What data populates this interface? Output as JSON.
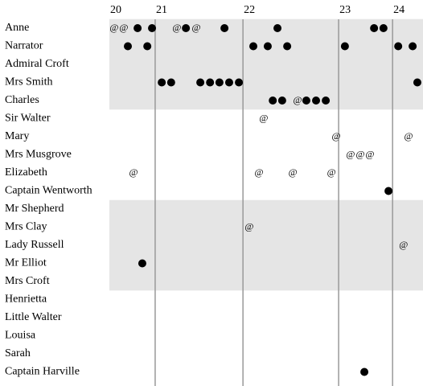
{
  "chart_data": {
    "type": "timeline",
    "marker_text": "@",
    "xlim": [
      0,
      100
    ],
    "xticks": [
      {
        "value": 0,
        "label": "20"
      },
      {
        "value": 14.6,
        "label": "21"
      },
      {
        "value": 42.6,
        "label": "22"
      },
      {
        "value": 73.1,
        "label": "23"
      },
      {
        "value": 90.3,
        "label": "24"
      }
    ],
    "grid": true,
    "dot_color": "#000000",
    "band_color": "#e5e5e5",
    "grid_color": "#999999",
    "rows": [
      {
        "name": "Anne",
        "dots": [
          9.0,
          13.6,
          24.4,
          36.7,
          53.6,
          84.4,
          87.4
        ],
        "ats": [
          1.5,
          4.6,
          21.5,
          27.7
        ]
      },
      {
        "name": "Narrator",
        "dots": [
          5.9,
          12.1,
          45.9,
          50.5,
          56.7,
          75.1,
          92.1,
          96.7
        ],
        "ats": []
      },
      {
        "name": "Admiral Croft",
        "dots": [],
        "ats": []
      },
      {
        "name": "Mrs Smith",
        "dots": [
          16.7,
          19.7,
          29.0,
          32.1,
          35.1,
          38.2,
          41.3,
          98.2
        ],
        "ats": []
      },
      {
        "name": "Charles",
        "dots": [
          52.1,
          55.1,
          62.8,
          65.9,
          69.0
        ],
        "ats": [
          60.0
        ]
      },
      {
        "name": "Sir Walter",
        "dots": [],
        "ats": [
          49.2
        ]
      },
      {
        "name": "Mary",
        "dots": [],
        "ats": [
          72.3,
          95.4
        ]
      },
      {
        "name": "Mrs Musgrove",
        "dots": [],
        "ats": [
          76.9,
          80.0,
          83.1
        ]
      },
      {
        "name": "Elizabeth",
        "dots": [],
        "ats": [
          7.7,
          47.7,
          58.5,
          70.8
        ]
      },
      {
        "name": "Captain Wentworth",
        "dots": [
          89.0
        ],
        "ats": []
      },
      {
        "name": "Mr Shepherd",
        "dots": [],
        "ats": []
      },
      {
        "name": "Mrs Clay",
        "dots": [],
        "ats": [
          44.6
        ]
      },
      {
        "name": "Lady Russell",
        "dots": [],
        "ats": [
          93.8
        ]
      },
      {
        "name": "Mr Elliot",
        "dots": [
          10.5
        ],
        "ats": []
      },
      {
        "name": "Mrs Croft",
        "dots": [],
        "ats": []
      },
      {
        "name": "Henrietta",
        "dots": [],
        "ats": []
      },
      {
        "name": "Little Walter",
        "dots": [],
        "ats": []
      },
      {
        "name": "Louisa",
        "dots": [],
        "ats": []
      },
      {
        "name": "Sarah",
        "dots": [],
        "ats": []
      },
      {
        "name": "Captain Harville",
        "dots": [
          81.3
        ],
        "ats": []
      }
    ]
  }
}
